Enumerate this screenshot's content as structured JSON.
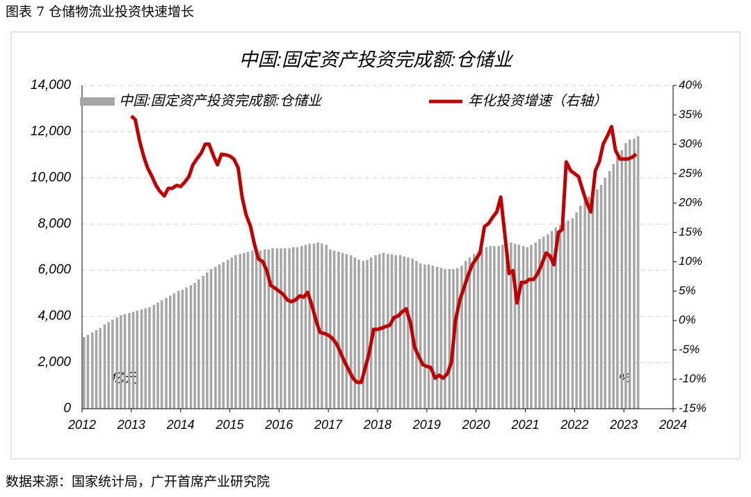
{
  "header": {
    "title": "图表 7 仓储物流业投资快速增长"
  },
  "chart_data": {
    "type": "bar-line",
    "title": "中国:固定资产投资完成额:仓储业",
    "y_unit": "亿元",
    "y2_unit": "%",
    "x": [
      2012,
      2012.08,
      2012.17,
      2012.25,
      2012.33,
      2012.42,
      2012.5,
      2012.58,
      2012.67,
      2012.75,
      2012.83,
      2012.92,
      2013,
      2013.08,
      2013.17,
      2013.25,
      2013.33,
      2013.42,
      2013.5,
      2013.58,
      2013.67,
      2013.75,
      2013.83,
      2013.92,
      2014,
      2014.08,
      2014.17,
      2014.25,
      2014.33,
      2014.42,
      2014.5,
      2014.58,
      2014.67,
      2014.75,
      2014.83,
      2014.92,
      2015,
      2015.08,
      2015.17,
      2015.25,
      2015.33,
      2015.42,
      2015.5,
      2015.58,
      2015.67,
      2015.75,
      2015.83,
      2015.92,
      2016,
      2016.08,
      2016.17,
      2016.25,
      2016.33,
      2016.42,
      2016.5,
      2016.58,
      2016.67,
      2016.75,
      2016.83,
      2016.92,
      2017,
      2017.08,
      2017.17,
      2017.25,
      2017.33,
      2017.42,
      2017.5,
      2017.58,
      2017.67,
      2017.75,
      2017.83,
      2017.92,
      2018,
      2018.08,
      2018.17,
      2018.25,
      2018.33,
      2018.42,
      2018.5,
      2018.58,
      2018.67,
      2018.75,
      2018.83,
      2018.92,
      2019,
      2019.08,
      2019.17,
      2019.25,
      2019.33,
      2019.42,
      2019.5,
      2019.58,
      2019.67,
      2019.75,
      2019.83,
      2019.92,
      2020,
      2020.08,
      2020.17,
      2020.25,
      2020.33,
      2020.42,
      2020.5,
      2020.58,
      2020.67,
      2020.75,
      2020.83,
      2020.92,
      2021,
      2021.08,
      2021.17,
      2021.25,
      2021.33,
      2021.42,
      2021.5,
      2021.58,
      2021.67,
      2021.75,
      2021.83,
      2021.92,
      2022,
      2022.08,
      2022.17,
      2022.25,
      2022.33,
      2022.42,
      2022.5,
      2022.58,
      2022.67,
      2022.75,
      2022.83,
      2022.92,
      2023,
      2023.08,
      2023.17,
      2023.25
    ],
    "series": [
      {
        "name": "中国:固定资产投资完成额:仓储业",
        "type": "bar",
        "color": "#a6a6a6",
        "values": [
          3100,
          3200,
          3300,
          3400,
          3500,
          3650,
          3750,
          3850,
          3950,
          4050,
          4100,
          4150,
          4200,
          4250,
          4300,
          4350,
          4400,
          4500,
          4600,
          4700,
          4800,
          4900,
          5000,
          5100,
          5150,
          5250,
          5350,
          5450,
          5600,
          5750,
          5900,
          6050,
          6150,
          6250,
          6350,
          6450,
          6550,
          6650,
          6700,
          6750,
          6800,
          6850,
          6850,
          6850,
          6900,
          6900,
          6950,
          6950,
          6950,
          6950,
          6950,
          7000,
          7000,
          7050,
          7100,
          7150,
          7150,
          7200,
          7150,
          7100,
          6900,
          6850,
          6800,
          6750,
          6700,
          6650,
          6550,
          6450,
          6400,
          6450,
          6550,
          6650,
          6700,
          6750,
          6700,
          6700,
          6650,
          6650,
          6600,
          6550,
          6500,
          6400,
          6300,
          6250,
          6250,
          6200,
          6150,
          6100,
          6050,
          6050,
          6050,
          6100,
          6200,
          6400,
          6550,
          6700,
          6800,
          6900,
          7000,
          7050,
          7050,
          7050,
          7100,
          7150,
          7200,
          7150,
          7100,
          7050,
          7000,
          7100,
          7200,
          7350,
          7450,
          7550,
          7700,
          7850,
          7950,
          8050,
          8150,
          8250,
          8500,
          8800,
          9100,
          9200,
          9300,
          9500,
          9700,
          10000,
          10300,
          10600,
          10900,
          11200,
          11500,
          11650,
          11700,
          11800
        ]
      },
      {
        "name": "年化投资增速（右轴）",
        "type": "line",
        "axis": "y2",
        "color": "#c00000",
        "values": [
          null,
          null,
          null,
          null,
          null,
          null,
          null,
          null,
          null,
          null,
          null,
          null,
          34.8,
          34.2,
          30.5,
          28,
          26,
          24.5,
          23,
          22,
          21.2,
          22.5,
          22.5,
          23,
          22.8,
          23.5,
          24.5,
          26.5,
          27.5,
          28.5,
          30,
          30,
          28,
          26.5,
          28.3,
          28.2,
          28,
          27.5,
          26,
          21,
          18,
          16,
          13,
          10.5,
          10,
          8.5,
          6,
          5.5,
          5,
          4.5,
          3.5,
          3.2,
          3.5,
          4.2,
          4,
          4.8,
          2.5,
          0,
          -2,
          -2.2,
          -2.5,
          -3,
          -4,
          -5.5,
          -7,
          -8.5,
          -9.8,
          -10.5,
          -10.5,
          -8,
          -5.5,
          -1.5,
          -1.5,
          -1.3,
          -1,
          -0.8,
          0.5,
          0.8,
          1.5,
          2,
          -0.5,
          -4.5,
          -6,
          -7.5,
          -7.8,
          -8,
          -9.8,
          -9.3,
          -9.8,
          -9,
          -7,
          0,
          3.5,
          5.5,
          7.5,
          9.5,
          10.5,
          11.5,
          16,
          16.5,
          17.5,
          18.5,
          21,
          15,
          8,
          8.5,
          3,
          6.5,
          6.5,
          7,
          7,
          8,
          9.5,
          11.5,
          11,
          9.5,
          15,
          15.5,
          27,
          25.5,
          25,
          24.5,
          22,
          20,
          18.5,
          25.5,
          27,
          30,
          31.5,
          33,
          29,
          27.5,
          27.5,
          27.5,
          27.8,
          28.3
        ]
      }
    ],
    "xlim": [
      2012,
      2024
    ],
    "xticks": [
      2012,
      2013,
      2014,
      2015,
      2016,
      2017,
      2018,
      2019,
      2020,
      2021,
      2022,
      2023,
      2024
    ],
    "ylim": [
      0,
      14000
    ],
    "yticks": [
      0,
      {
        "value": 2000,
        "label": "2,000"
      },
      {
        "value": 4000,
        "label": "4,000"
      },
      {
        "value": 6000,
        "label": "6,000"
      },
      {
        "value": 8000,
        "label": "8,000"
      },
      {
        "value": 10000,
        "label": "10,000"
      },
      {
        "value": 12000,
        "label": "12,000"
      },
      {
        "value": 14000,
        "label": "14,000"
      }
    ],
    "y2lim": [
      -15,
      40
    ],
    "y2ticks": [
      {
        "value": -15,
        "label": "-15%"
      },
      {
        "value": -10,
        "label": "-10%"
      },
      {
        "value": -5,
        "label": "-5%"
      },
      {
        "value": 0,
        "label": "0%"
      },
      {
        "value": 5,
        "label": "5%"
      },
      {
        "value": 10,
        "label": "10%"
      },
      {
        "value": 15,
        "label": "15%"
      },
      {
        "value": 20,
        "label": "20%"
      },
      {
        "value": 25,
        "label": "25%"
      },
      {
        "value": 30,
        "label": "30%"
      },
      {
        "value": 35,
        "label": "35%"
      },
      {
        "value": 40,
        "label": "40%"
      }
    ],
    "grid": true,
    "legend": "top"
  },
  "footer": {
    "source": "数据来源：国家统计局，广开首席产业研究院"
  }
}
